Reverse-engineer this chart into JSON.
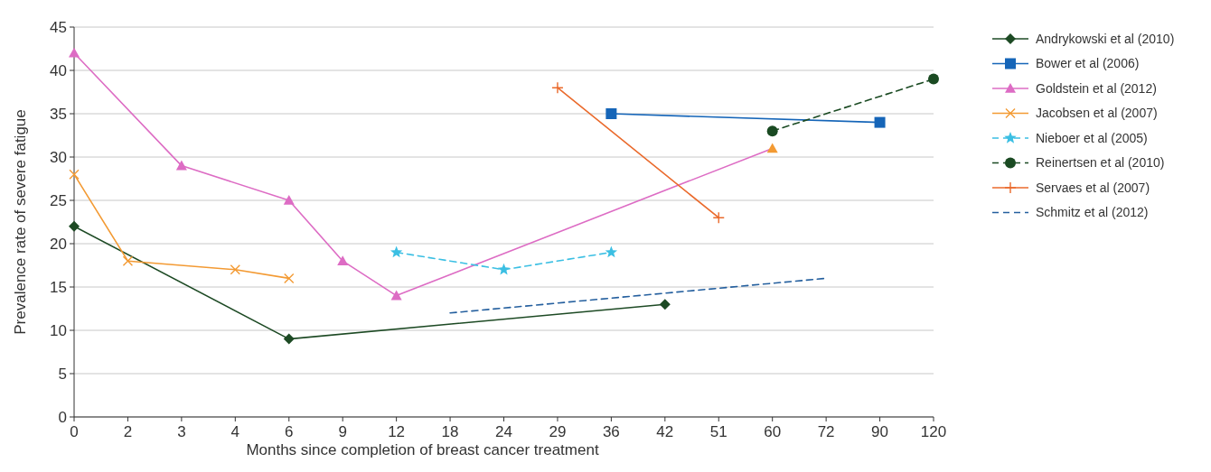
{
  "chart_data": {
    "type": "line",
    "xlabel": "Months since completion of breast cancer treatment",
    "ylabel": "Prevalence rate of severe fatigue",
    "categories": [
      "0",
      "2",
      "3",
      "4",
      "6",
      "9",
      "12",
      "18",
      "24",
      "29",
      "36",
      "42",
      "51",
      "60",
      "72",
      "90",
      "120"
    ],
    "ylim": [
      0,
      45
    ],
    "yticks": [
      0,
      5,
      10,
      15,
      20,
      25,
      30,
      35,
      40,
      45
    ],
    "grid": "y",
    "legend": "right",
    "series": [
      {
        "name": "Andrykowski et al (2010)",
        "color": "#1d4a24",
        "marker": "diamond",
        "line_style": "solid",
        "values": [
          22,
          null,
          null,
          null,
          9,
          null,
          null,
          null,
          null,
          null,
          null,
          13,
          null,
          null,
          null,
          null,
          null
        ]
      },
      {
        "name": "Bower et al (2006)",
        "color": "#1565b8",
        "marker": "square",
        "line_style": "solid",
        "values": [
          null,
          null,
          null,
          null,
          null,
          null,
          null,
          null,
          null,
          null,
          35,
          null,
          null,
          null,
          null,
          34,
          null
        ]
      },
      {
        "name": "Goldstein et al (2012)",
        "color": "#dd6cc4",
        "marker": "triangle",
        "line_style": "solid",
        "values": [
          42,
          null,
          29,
          null,
          25,
          18,
          14,
          null,
          null,
          null,
          null,
          null,
          null,
          31,
          null,
          null,
          null
        ],
        "colors": [
          "#dd6cc4",
          null,
          "#dd6cc4",
          null,
          "#dd6cc4",
          "#dd6cc4",
          "#dd6cc4",
          null,
          null,
          null,
          null,
          null,
          null,
          "#f39a33",
          null,
          null,
          null
        ]
      },
      {
        "name": "Jacobsen et al (2007)",
        "color": "#f39a33",
        "marker": "cross",
        "line_style": "solid",
        "values": [
          28,
          18,
          null,
          17,
          16,
          null,
          null,
          null,
          null,
          null,
          null,
          null,
          null,
          null,
          null,
          null,
          null
        ]
      },
      {
        "name": "Nieboer et al (2005)",
        "color": "#3bbfe3",
        "marker": "star",
        "line_style": "dashed",
        "values": [
          null,
          null,
          null,
          null,
          null,
          null,
          19,
          null,
          17,
          null,
          19,
          null,
          null,
          null,
          null,
          null,
          null
        ]
      },
      {
        "name": "Reinertsen et al (2010)",
        "color": "#1a4a22",
        "marker": "circle",
        "line_style": "dashed",
        "values": [
          null,
          null,
          null,
          null,
          null,
          null,
          null,
          null,
          null,
          null,
          null,
          null,
          null,
          33,
          null,
          null,
          39
        ]
      },
      {
        "name": "Servaes et al (2007)",
        "color": "#ea6a2c",
        "marker": "plus",
        "line_style": "solid",
        "values": [
          null,
          null,
          null,
          null,
          null,
          null,
          null,
          null,
          null,
          38,
          null,
          null,
          23,
          null,
          null,
          null,
          null
        ]
      },
      {
        "name": "Schmitz et al (2012)",
        "color": "#245f9e",
        "marker": "none",
        "line_style": "dashed",
        "values": [
          null,
          null,
          null,
          null,
          null,
          null,
          null,
          12,
          null,
          null,
          null,
          null,
          null,
          null,
          16,
          null,
          null
        ]
      }
    ]
  }
}
